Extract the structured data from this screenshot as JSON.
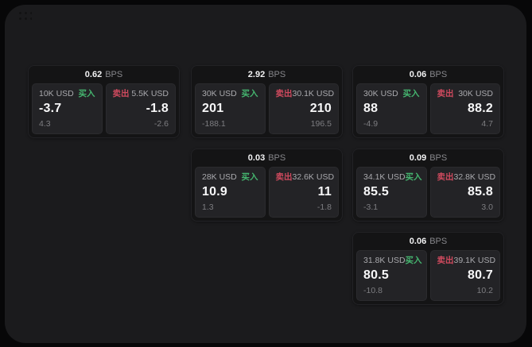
{
  "colors": {
    "surface": "#1b1b1d",
    "card_bg": "#141415",
    "panel_bg": "#232326",
    "buy_green": "#45b56f",
    "sell_red": "#cf4a5e"
  },
  "icons": {
    "drag_handle": "grid-dots"
  },
  "labels": {
    "buy": "买入",
    "sell": "卖出",
    "bps_unit": "BPS"
  },
  "cards": [
    {
      "bps_value": "0.62",
      "buy": {
        "amount": "10K USD",
        "price": "-3.7",
        "change": "4.3"
      },
      "sell": {
        "amount": "5.5K USD",
        "price": "-1.8",
        "change": "-2.6"
      }
    },
    {
      "bps_value": "2.92",
      "buy": {
        "amount": "30K USD",
        "price": "201",
        "change": "-188.1"
      },
      "sell": {
        "amount": "30.1K USD",
        "price": "210",
        "change": "196.5"
      }
    },
    {
      "bps_value": "0.06",
      "buy": {
        "amount": "30K USD",
        "price": "88",
        "change": "-4.9"
      },
      "sell": {
        "amount": "30K USD",
        "price": "88.2",
        "change": "4.7"
      }
    },
    {
      "bps_value": "0.03",
      "buy": {
        "amount": "28K USD",
        "price": "10.9",
        "change": "1.3"
      },
      "sell": {
        "amount": "32.6K USD",
        "price": "11",
        "change": "-1.8"
      }
    },
    {
      "bps_value": "0.09",
      "buy": {
        "amount": "34.1K USD",
        "price": "85.5",
        "change": "-3.1"
      },
      "sell": {
        "amount": "32.8K USD",
        "price": "85.8",
        "change": "3.0"
      }
    },
    {
      "bps_value": "0.06",
      "buy": {
        "amount": "31.8K USD",
        "price": "80.5",
        "change": "-10.8"
      },
      "sell": {
        "amount": "39.1K USD",
        "price": "80.7",
        "change": "10.2"
      }
    }
  ]
}
